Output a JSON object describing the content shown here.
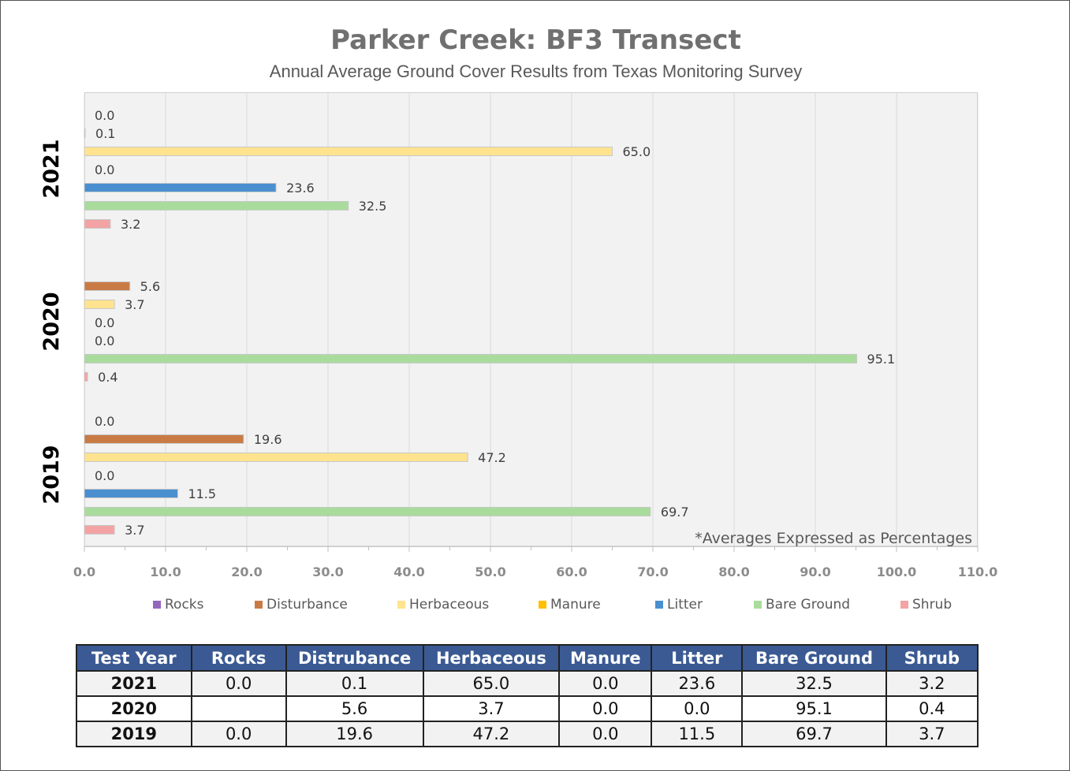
{
  "chart_data": {
    "type": "bar",
    "orientation": "horizontal",
    "title": "Parker Creek: BF3 Transect",
    "subtitle": "Annual Average Ground Cover Results from Texas Monitoring Survey",
    "note": "*Averages Expressed as Percentages",
    "categories": [
      "2021",
      "2020",
      "2019"
    ],
    "series": [
      {
        "name": "Rocks",
        "color": "#9467bd",
        "values": [
          0.0,
          null,
          0.0
        ]
      },
      {
        "name": "Disturbance",
        "color": "#c97b45",
        "values": [
          0.1,
          5.6,
          19.6
        ]
      },
      {
        "name": "Herbaceous",
        "color": "#ffe38f",
        "values": [
          65.0,
          3.7,
          47.2
        ]
      },
      {
        "name": "Manure",
        "color": "#ffc000",
        "values": [
          0.0,
          0.0,
          0.0
        ]
      },
      {
        "name": "Litter",
        "color": "#4a90d0",
        "values": [
          23.6,
          0.0,
          11.5
        ]
      },
      {
        "name": "Bare Ground",
        "color": "#a9dc9c",
        "values": [
          32.5,
          95.1,
          69.7
        ]
      },
      {
        "name": "Shrub",
        "color": "#f4a3a5",
        "values": [
          3.2,
          0.4,
          3.7
        ]
      }
    ],
    "xlim": [
      0,
      110
    ],
    "xticks": [
      "0.0",
      "10.0",
      "20.0",
      "30.0",
      "40.0",
      "50.0",
      "60.0",
      "70.0",
      "80.0",
      "90.0",
      "100.0",
      "110.0"
    ],
    "grid": true,
    "legend": "bottom"
  },
  "table": {
    "headers": [
      "Test Year",
      "Rocks",
      "Distrubance",
      "Herbaceous",
      "Manure",
      "Litter",
      "Bare Ground",
      "Shrub"
    ],
    "rows": [
      [
        "2021",
        "0.0",
        "0.1",
        "65.0",
        "0.0",
        "23.6",
        "32.5",
        "3.2"
      ],
      [
        "2020",
        "",
        "5.6",
        "3.7",
        "0.0",
        "0.0",
        "95.1",
        "0.4"
      ],
      [
        "2019",
        "0.0",
        "19.6",
        "47.2",
        "0.0",
        "11.5",
        "69.7",
        "3.7"
      ]
    ]
  }
}
